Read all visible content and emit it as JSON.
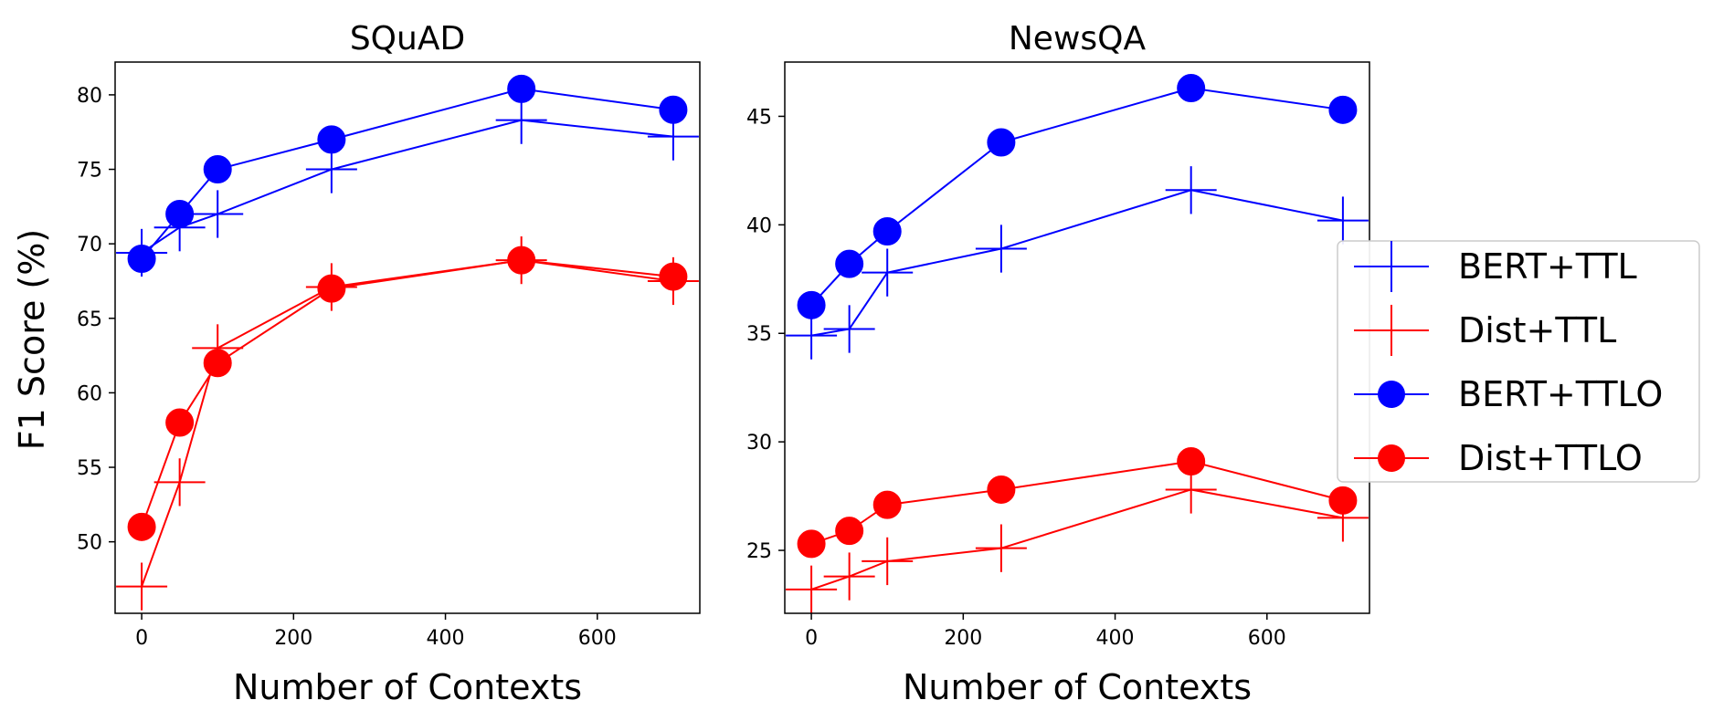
{
  "figure": {
    "ylabel": "F1 Score (%)"
  },
  "legend": {
    "placement": "right",
    "entries": [
      {
        "name": "BERT+TTL",
        "color": "#0000ff",
        "marker": "plus"
      },
      {
        "name": "Dist+TTL",
        "color": "#ff0000",
        "marker": "plus"
      },
      {
        "name": "BERT+TTLO",
        "color": "#0000ff",
        "marker": "circle"
      },
      {
        "name": "Dist+TTLO",
        "color": "#ff0000",
        "marker": "circle"
      }
    ]
  },
  "chart_data": [
    {
      "type": "line",
      "title": "SQuAD",
      "xlabel": "Number of Contexts",
      "ylabel": "F1 Score (%)",
      "xlim": [
        -35,
        735
      ],
      "ylim": [
        45.2,
        82.2
      ],
      "xticks": [
        0,
        200,
        400,
        600
      ],
      "yticks": [
        50,
        55,
        60,
        65,
        70,
        75,
        80
      ],
      "grid": false,
      "series": [
        {
          "name": "BERT+TTL",
          "color": "#0000ff",
          "marker": "plus",
          "x": [
            0,
            50,
            100,
            250,
            500,
            700
          ],
          "y": [
            69.4,
            71.1,
            72.0,
            75.0,
            78.3,
            77.2
          ],
          "err": [
            1.6,
            1.6,
            1.6,
            1.6,
            1.6,
            1.6
          ]
        },
        {
          "name": "Dist+TTL",
          "color": "#ff0000",
          "marker": "plus",
          "x": [
            0,
            50,
            100,
            250,
            500,
            700
          ],
          "y": [
            47.0,
            54.0,
            63.0,
            67.1,
            68.9,
            67.5
          ],
          "err": [
            1.6,
            1.6,
            1.6,
            1.6,
            1.6,
            1.6
          ]
        },
        {
          "name": "BERT+TTLO",
          "color": "#0000ff",
          "marker": "circle",
          "x": [
            0,
            50,
            100,
            250,
            500,
            700
          ],
          "y": [
            69.0,
            72.0,
            75.0,
            77.0,
            80.4,
            79.0
          ]
        },
        {
          "name": "Dist+TTLO",
          "color": "#ff0000",
          "marker": "circle",
          "x": [
            0,
            50,
            100,
            250,
            500,
            700
          ],
          "y": [
            51.0,
            58.0,
            62.0,
            67.0,
            68.9,
            67.8
          ]
        }
      ]
    },
    {
      "type": "line",
      "title": "NewsQA",
      "xlabel": "Number of Contexts",
      "ylabel": "",
      "xlim": [
        -35,
        735
      ],
      "ylim": [
        22.1,
        47.5
      ],
      "xticks": [
        0,
        200,
        400,
        600
      ],
      "yticks": [
        25,
        30,
        35,
        40,
        45
      ],
      "grid": false,
      "series": [
        {
          "name": "BERT+TTL",
          "color": "#0000ff",
          "marker": "plus",
          "x": [
            0,
            50,
            100,
            250,
            500,
            700
          ],
          "y": [
            34.9,
            35.2,
            37.8,
            38.9,
            41.6,
            40.2
          ],
          "err": [
            1.1,
            1.1,
            1.1,
            1.1,
            1.1,
            1.1
          ]
        },
        {
          "name": "Dist+TTL",
          "color": "#ff0000",
          "marker": "plus",
          "x": [
            0,
            50,
            100,
            250,
            500,
            700
          ],
          "y": [
            23.2,
            23.8,
            24.5,
            25.1,
            27.8,
            26.5
          ],
          "err": [
            1.1,
            1.1,
            1.1,
            1.1,
            1.1,
            1.1
          ]
        },
        {
          "name": "BERT+TTLO",
          "color": "#0000ff",
          "marker": "circle",
          "x": [
            0,
            50,
            100,
            250,
            500,
            700
          ],
          "y": [
            36.3,
            38.2,
            39.7,
            43.8,
            46.3,
            45.3
          ]
        },
        {
          "name": "Dist+TTLO",
          "color": "#ff0000",
          "marker": "circle",
          "x": [
            0,
            50,
            100,
            250,
            500,
            700
          ],
          "y": [
            25.3,
            25.9,
            27.1,
            27.8,
            29.1,
            27.3
          ]
        }
      ]
    }
  ]
}
